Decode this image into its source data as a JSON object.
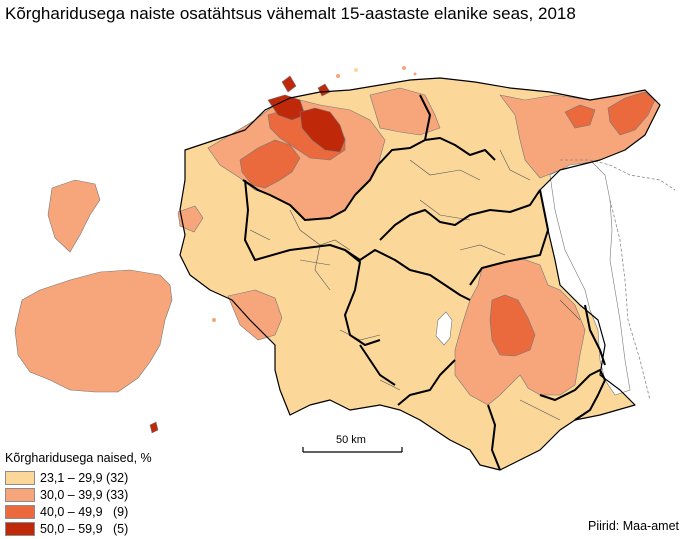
{
  "title": "Kõrgharidusega naiste osatähtsus vähemalt 15-aastaste elanike seas, 2018",
  "scale": {
    "label": "50 km"
  },
  "legend": {
    "title": "Kõrgharidusega naised, %",
    "items": [
      {
        "range": "23,1 – 29,9",
        "count": "(32)",
        "color": "#fbd89a"
      },
      {
        "range": "30,0 – 39,9",
        "count": "(33)",
        "color": "#f6a67a"
      },
      {
        "range": "40,0 – 49,9",
        "count": "(9)",
        "color": "#ea6a3d"
      },
      {
        "range": "50,0 – 59,9",
        "count": "(5)",
        "color": "#c0280a"
      }
    ]
  },
  "credit": "Piirid: Maa-amet",
  "colors": {
    "c1": "#fbd89a",
    "c2": "#f6a67a",
    "c3": "#ea6a3d",
    "c4": "#c0280a",
    "border": "#000000",
    "lake": "#ffffff"
  }
}
